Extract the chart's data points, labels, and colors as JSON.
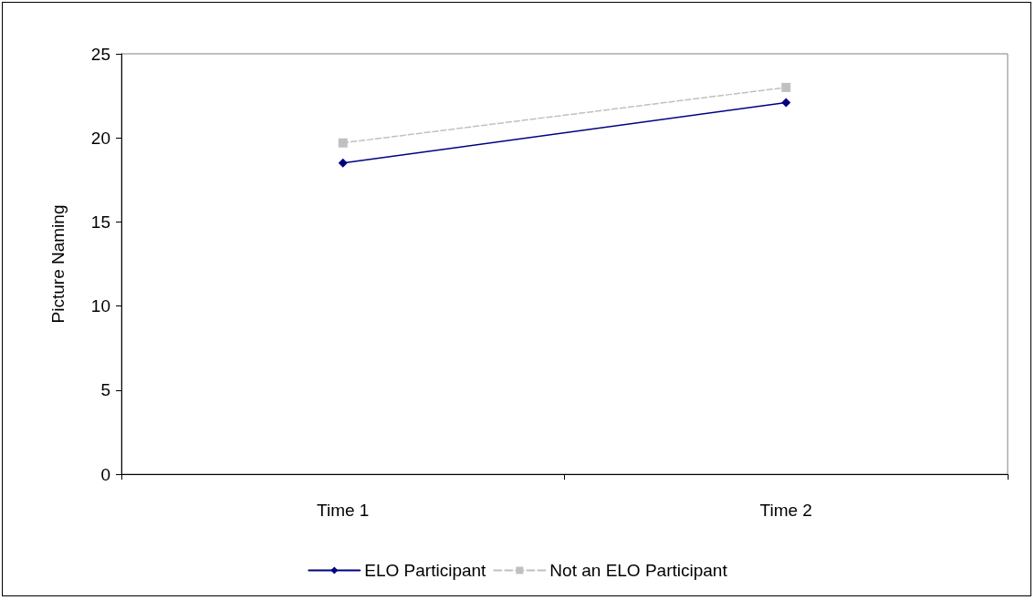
{
  "chart_data": {
    "type": "line",
    "ylabel": "Picture Naming",
    "categories": [
      "Time 1",
      "Time 2"
    ],
    "series": [
      {
        "name": "ELO Participant",
        "color": "#000080",
        "values": [
          18.5,
          22.1
        ],
        "marker": "diamond",
        "line_style": "solid"
      },
      {
        "name": "Not an ELO Participant",
        "color": "#c0c0c0",
        "values": [
          19.7,
          23.0
        ],
        "marker": "square",
        "line_style": "dashed"
      }
    ],
    "ylim": [
      0,
      25
    ],
    "yticks": [
      0,
      5,
      10,
      15,
      20,
      25
    ],
    "grid": false,
    "legend": "bottom"
  }
}
